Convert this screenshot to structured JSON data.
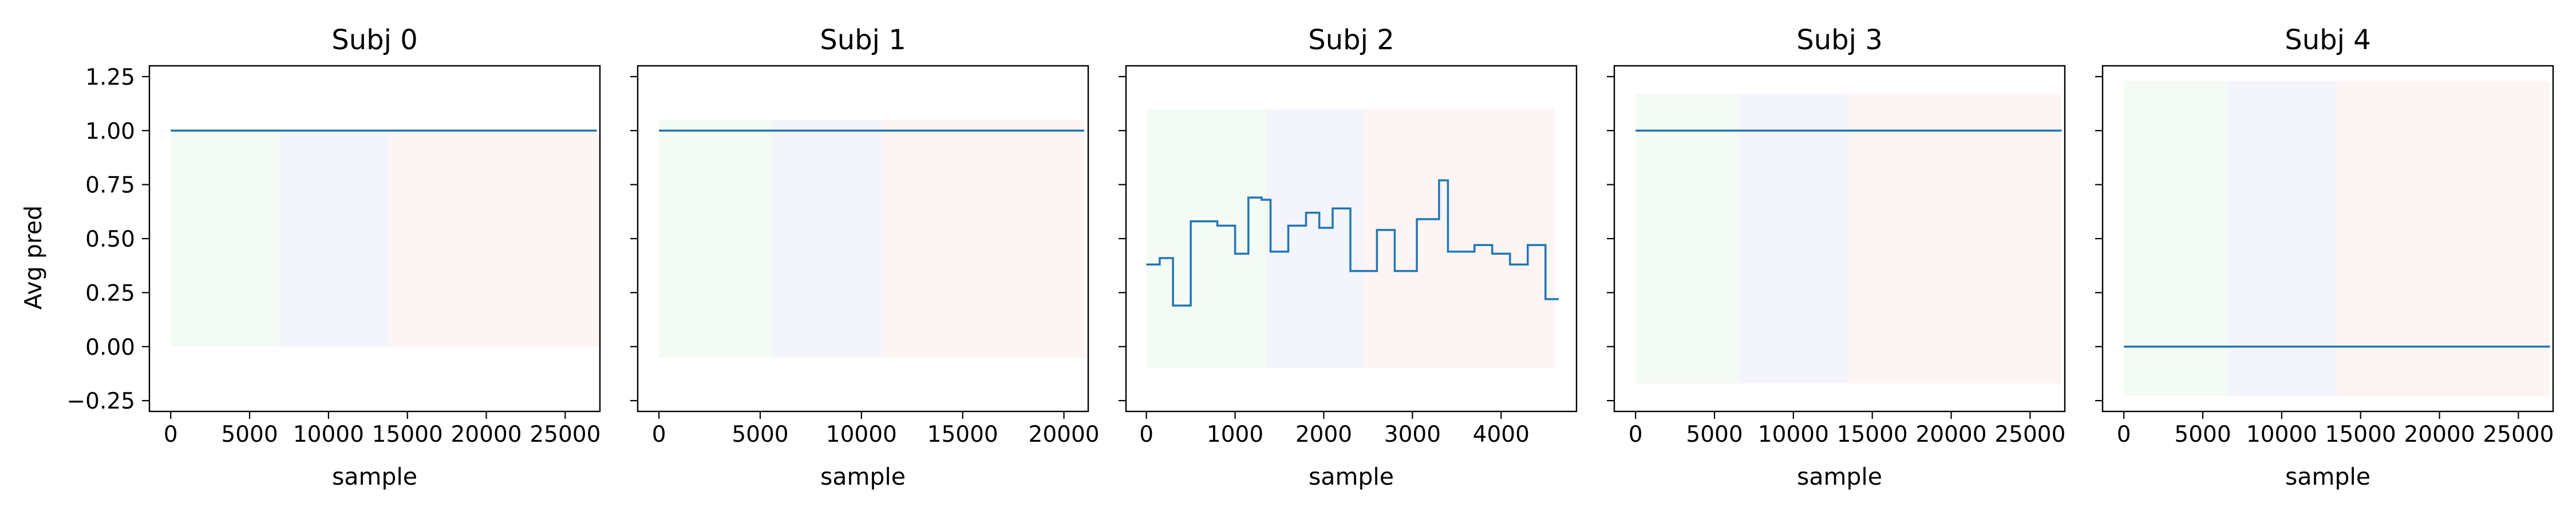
{
  "chart_data": {
    "type": "line",
    "ylabel": "Avg pred",
    "ylim": [
      -0.3,
      1.3
    ],
    "yticks": [
      -0.25,
      0.0,
      0.25,
      0.5,
      0.75,
      1.0,
      1.25
    ],
    "ytick_labels": [
      "−0.25",
      "0.00",
      "0.25",
      "0.50",
      "0.75",
      "1.00",
      "1.25"
    ],
    "line_color": "#1f77b4",
    "segment_colors": [
      "#2ca02c",
      "#1f1fd4",
      "#d62728"
    ],
    "subplots": [
      {
        "title": "Subj 0",
        "xlabel": "sample",
        "xlim": [
          -1350,
          27200
        ],
        "xticks": [
          0,
          5000,
          10000,
          15000,
          20000,
          25000
        ],
        "xtick_labels": [
          "0",
          "5000",
          "10000",
          "15000",
          "20000",
          "25000"
        ],
        "segments": [
          [
            0,
            6900
          ],
          [
            6900,
            13900
          ],
          [
            13900,
            27100
          ]
        ],
        "shade_y": [
          0.0,
          1.0
        ],
        "steps": [
          [
            0,
            1.0
          ],
          [
            27000,
            1.0
          ]
        ]
      },
      {
        "title": "Subj 1",
        "xlabel": "sample",
        "xlim": [
          -1050,
          21200
        ],
        "xticks": [
          0,
          5000,
          10000,
          15000,
          20000
        ],
        "xtick_labels": [
          "0",
          "5000",
          "10000",
          "15000",
          "20000"
        ],
        "segments": [
          [
            0,
            5600
          ],
          [
            5600,
            11000
          ],
          [
            11000,
            21000
          ]
        ],
        "shade_y": [
          -0.05,
          1.05
        ],
        "steps": [
          [
            0,
            1.0
          ],
          [
            21000,
            1.0
          ]
        ]
      },
      {
        "title": "Subj 2",
        "xlabel": "sample",
        "xlim": [
          -230,
          4850
        ],
        "xticks": [
          0,
          1000,
          2000,
          3000,
          4000
        ],
        "xtick_labels": [
          "0",
          "1000",
          "2000",
          "3000",
          "4000"
        ],
        "segments": [
          [
            0,
            1350
          ],
          [
            1350,
            2450
          ],
          [
            2450,
            4600
          ]
        ],
        "shade_y": [
          -0.1,
          1.1
        ],
        "steps": [
          [
            0,
            0.38
          ],
          [
            150,
            0.41
          ],
          [
            300,
            0.19
          ],
          [
            500,
            0.58
          ],
          [
            800,
            0.56
          ],
          [
            1000,
            0.43
          ],
          [
            1150,
            0.69
          ],
          [
            1300,
            0.68
          ],
          [
            1400,
            0.44
          ],
          [
            1600,
            0.56
          ],
          [
            1800,
            0.62
          ],
          [
            1950,
            0.55
          ],
          [
            2100,
            0.64
          ],
          [
            2300,
            0.35
          ],
          [
            2600,
            0.54
          ],
          [
            2800,
            0.35
          ],
          [
            3050,
            0.59
          ],
          [
            3300,
            0.77
          ],
          [
            3400,
            0.44
          ],
          [
            3700,
            0.47
          ],
          [
            3900,
            0.43
          ],
          [
            4100,
            0.38
          ],
          [
            4300,
            0.47
          ],
          [
            4500,
            0.22
          ],
          [
            4650,
            0.22
          ]
        ]
      },
      {
        "title": "Subj 3",
        "xlabel": "sample",
        "xlim": [
          -1350,
          27200
        ],
        "xticks": [
          0,
          5000,
          10000,
          15000,
          20000,
          25000
        ],
        "xtick_labels": [
          "0",
          "5000",
          "10000",
          "15000",
          "20000",
          "25000"
        ],
        "segments": [
          [
            0,
            6600
          ],
          [
            6600,
            13500
          ],
          [
            13500,
            27000
          ]
        ],
        "shade_y": [
          -0.17,
          1.17
        ],
        "steps": [
          [
            0,
            1.0
          ],
          [
            27000,
            1.0
          ]
        ]
      },
      {
        "title": "Subj 4",
        "xlabel": "sample",
        "xlim": [
          -1350,
          27200
        ],
        "xticks": [
          0,
          5000,
          10000,
          15000,
          20000,
          25000
        ],
        "xtick_labels": [
          "0",
          "5000",
          "10000",
          "15000",
          "20000",
          "25000"
        ],
        "segments": [
          [
            0,
            6600
          ],
          [
            6600,
            13500
          ],
          [
            13500,
            27000
          ]
        ],
        "shade_y": [
          -0.23,
          1.23
        ],
        "steps": [
          [
            0,
            0.0
          ],
          [
            27000,
            0.0
          ]
        ]
      }
    ]
  }
}
